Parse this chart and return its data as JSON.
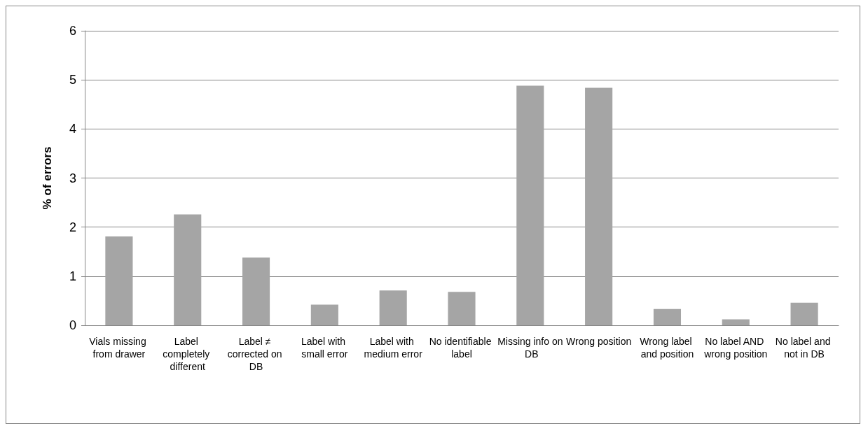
{
  "chart_data": {
    "type": "bar",
    "ylabel": "% of errors",
    "categories": [
      "Vials missing from drawer",
      "Label completely different",
      "Label ≠ corrected on DB",
      "Label with small error",
      "Label with medium error",
      "No identifiable label",
      "Missing info on DB",
      "Wrong position",
      "Wrong label and position",
      "No label AND wrong position",
      "No label and not in DB"
    ],
    "values": [
      1.81,
      2.26,
      1.38,
      0.42,
      0.71,
      0.68,
      4.88,
      4.84,
      0.33,
      0.12,
      0.46
    ],
    "color": "#a5a5a5",
    "ylim": [
      0,
      6
    ],
    "yticks": [
      0,
      1,
      2,
      3,
      4,
      5,
      6
    ],
    "grid": "y"
  }
}
